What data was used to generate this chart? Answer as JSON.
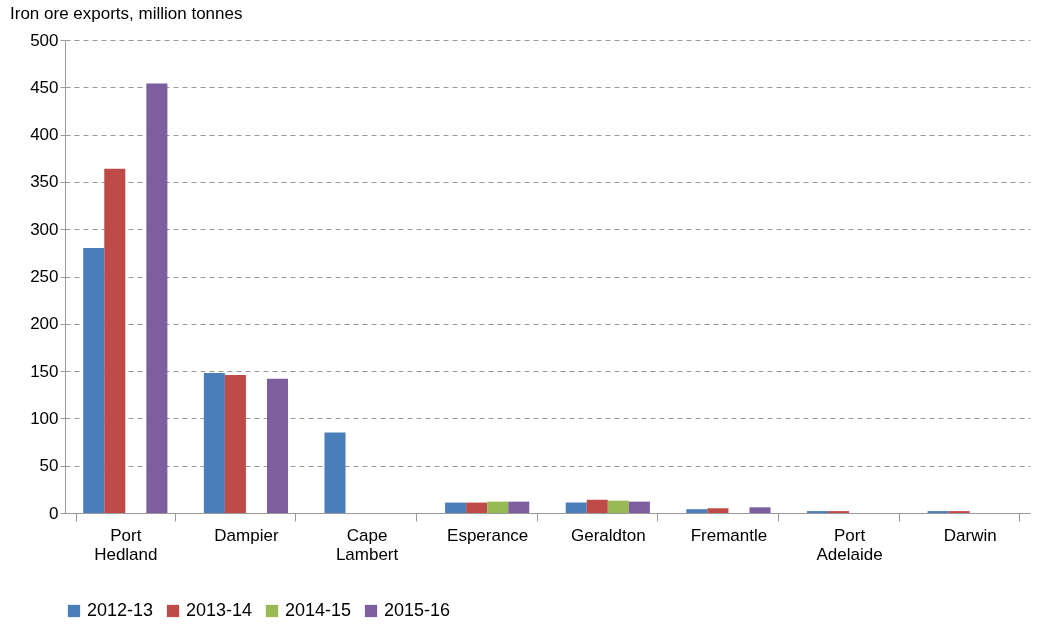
{
  "chart_data": {
    "type": "bar",
    "title": "Iron ore exports, million tonnes",
    "categories": [
      "Port Hedland",
      "Dampier",
      "Cape Lambert",
      "Esperance",
      "Geraldton",
      "Fremantle",
      "Port Adelaide",
      "Darwin"
    ],
    "series": [
      {
        "name": "2012-13",
        "color": "#4a7ebb",
        "values": [
          280,
          148,
          85,
          11,
          11,
          4,
          2,
          2
        ]
      },
      {
        "name": "2013-14",
        "color": "#be4b48",
        "values": [
          364,
          146,
          null,
          11,
          14,
          5,
          2,
          2
        ]
      },
      {
        "name": "2014-15",
        "color": "#98b954",
        "values": [
          null,
          null,
          null,
          12,
          13,
          null,
          null,
          null
        ]
      },
      {
        "name": "2015-16",
        "color": "#7d5fa0",
        "values": [
          454,
          142,
          null,
          12,
          12,
          6,
          null,
          null
        ]
      }
    ],
    "ylim": [
      0,
      500
    ],
    "yticks": [
      0,
      50,
      100,
      150,
      200,
      250,
      300,
      350,
      400,
      450,
      500
    ],
    "grid": "y",
    "legend": "bottom"
  }
}
